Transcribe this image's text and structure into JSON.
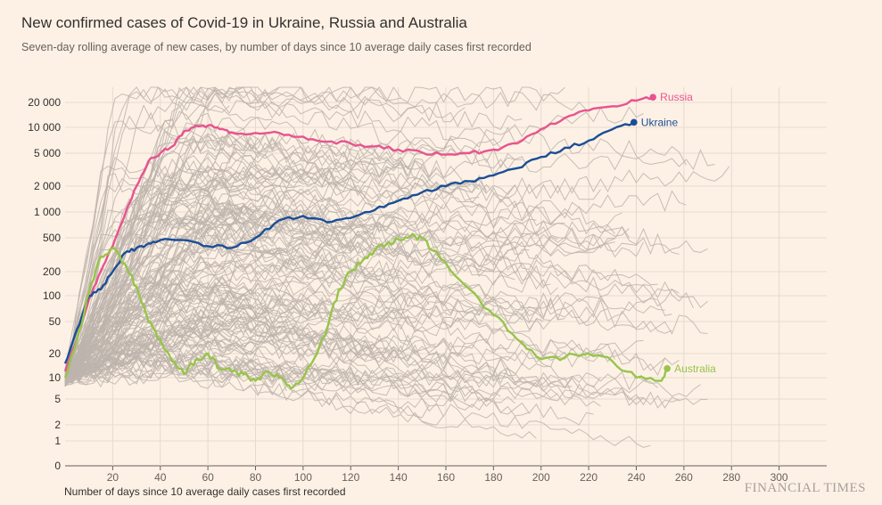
{
  "header": {
    "title": "New confirmed cases of Covid-19 in Ukraine, Russia and Australia",
    "subtitle": "Seven-day rolling average of new cases, by number of days since 10 average daily cases first recorded"
  },
  "footer": {
    "xaxis_title": "Number of days since 10 average daily cases first recorded",
    "source": "FINANCIAL TIMES"
  },
  "colors": {
    "background": "#fdf1e5",
    "russia": "#e8538f",
    "ukraine": "#1b4e96",
    "australia": "#97c44a",
    "other": "#bdb4ad",
    "grid": "#e6dacf"
  },
  "chart_data": {
    "type": "line",
    "xlabel": "Number of days since 10 average daily cases first recorded",
    "ylabel": "",
    "xlim": [
      0,
      320
    ],
    "y_scale": "log",
    "xticks": [
      20,
      40,
      60,
      80,
      100,
      120,
      140,
      160,
      180,
      200,
      220,
      240,
      260,
      280,
      300
    ],
    "yticks": [
      0,
      1,
      2,
      5,
      10,
      20,
      50,
      100,
      200,
      500,
      1000,
      2000,
      5000,
      10000,
      20000
    ],
    "ytick_labels": [
      "0",
      "1",
      "2",
      "5",
      "10",
      "20",
      "50",
      "100",
      "200",
      "500",
      "1 000",
      "2 000",
      "5 000",
      "10 000",
      "20 000"
    ],
    "grid": true,
    "series": [
      {
        "name": "Russia",
        "color": "#e8538f",
        "x": [
          0,
          5,
          10,
          15,
          20,
          25,
          30,
          35,
          40,
          45,
          50,
          55,
          60,
          65,
          70,
          80,
          90,
          100,
          110,
          120,
          130,
          140,
          150,
          160,
          170,
          180,
          190,
          200,
          210,
          220,
          230,
          240,
          247
        ],
        "y": [
          12,
          30,
          90,
          200,
          400,
          900,
          2000,
          4000,
          5000,
          6000,
          9000,
          10500,
          10500,
          9500,
          8700,
          8600,
          8600,
          7800,
          6800,
          6500,
          6000,
          5500,
          5100,
          4800,
          5000,
          5500,
          6500,
          9500,
          13000,
          16000,
          18000,
          21000,
          23000
        ]
      },
      {
        "name": "Ukraine",
        "color": "#1b4e96",
        "x": [
          0,
          5,
          10,
          15,
          20,
          25,
          30,
          35,
          40,
          50,
          60,
          70,
          80,
          90,
          100,
          110,
          120,
          130,
          140,
          150,
          160,
          170,
          180,
          190,
          200,
          210,
          220,
          230,
          239
        ],
        "y": [
          15,
          40,
          100,
          120,
          200,
          330,
          380,
          430,
          470,
          470,
          400,
          380,
          500,
          800,
          900,
          760,
          850,
          1050,
          1350,
          1700,
          2000,
          2300,
          2700,
          3300,
          4500,
          5800,
          7000,
          9500,
          11500
        ]
      },
      {
        "name": "Australia",
        "color": "#97c44a",
        "x": [
          0,
          5,
          10,
          15,
          20,
          25,
          30,
          35,
          40,
          45,
          50,
          55,
          60,
          65,
          70,
          75,
          80,
          85,
          90,
          95,
          100,
          105,
          110,
          115,
          120,
          125,
          130,
          135,
          140,
          145,
          150,
          155,
          160,
          170,
          180,
          190,
          200,
          210,
          220,
          230,
          240,
          250,
          253
        ],
        "y": [
          10,
          30,
          110,
          300,
          380,
          250,
          130,
          50,
          30,
          16,
          11,
          17,
          20,
          13,
          12,
          11,
          9,
          12,
          10,
          7,
          10,
          18,
          40,
          120,
          200,
          270,
          350,
          420,
          480,
          520,
          500,
          350,
          250,
          120,
          60,
          30,
          17,
          18,
          20,
          16,
          10,
          9,
          13
        ]
      }
    ]
  }
}
